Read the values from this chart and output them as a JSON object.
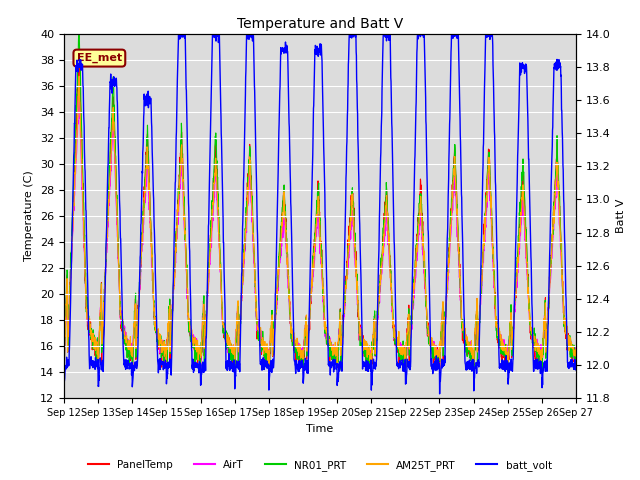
{
  "title": "Temperature and Batt V",
  "xlabel": "Time",
  "ylabel_left": "Temperature (C)",
  "ylabel_right": "Batt V",
  "ylim_left": [
    12,
    40
  ],
  "ylim_right": [
    11.8,
    14.0
  ],
  "x_tick_labels": [
    "Sep 12",
    "Sep 13",
    "Sep 14",
    "Sep 15",
    "Sep 16",
    "Sep 17",
    "Sep 18",
    "Sep 19",
    "Sep 20",
    "Sep 21",
    "Sep 22",
    "Sep 23",
    "Sep 24",
    "Sep 25",
    "Sep 26",
    "Sep 27"
  ],
  "annotation_text": "EE_met",
  "annotation_color": "#8B0000",
  "annotation_bg": "#FFFF99",
  "bg_color": "#DCDCDC",
  "series_colors": {
    "PanelTemp": "#FF0000",
    "AirT": "#FF00FF",
    "NR01_PRT": "#00CC00",
    "AM25T_PRT": "#FFA500",
    "batt_volt": "#0000FF"
  },
  "line_widths": {
    "PanelTemp": 0.8,
    "AirT": 0.8,
    "NR01_PRT": 0.8,
    "AM25T_PRT": 0.8,
    "batt_volt": 1.0
  }
}
